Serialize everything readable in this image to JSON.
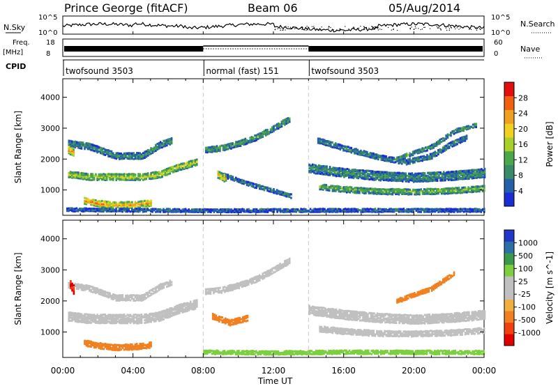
{
  "header": {
    "title": "Prince George (fitACF)",
    "beam": "Beam 06",
    "date": "05/Aug/2014"
  },
  "strips": {
    "nsky_label": "N.Sky",
    "nsky_ticks": [
      "10^5",
      "10^0"
    ],
    "nsearch_label": "N.Search",
    "nsearch_ticks": [
      "10^5",
      "10^0"
    ],
    "freq_label": [
      "Freq.",
      "[MHz]"
    ],
    "freq_ticks": [
      "18",
      "8"
    ],
    "nave_label": "Nave",
    "nave_ticks": [
      "60",
      "0"
    ],
    "cpid_label": "CPID",
    "cpid_segments": [
      {
        "label": "twofsound 3503",
        "start_h": 0,
        "end_h": 8
      },
      {
        "label": "normal (fast) 151",
        "start_h": 8,
        "end_h": 14
      },
      {
        "label": "twofsound 3503",
        "start_h": 14,
        "end_h": 24
      }
    ]
  },
  "colors": {
    "power": [
      "#1a2cd4",
      "#2460a8",
      "#3a8a6a",
      "#4aa84a",
      "#a8d02a",
      "#f0d020",
      "#f0a020",
      "#f06010",
      "#e01010"
    ],
    "velocity": [
      "#2038c8",
      "#2c70a8",
      "#3a9a4a",
      "#7cd040",
      "#c0c0c0",
      "#c0c0c0",
      "#f0b040",
      "#f08020",
      "#f04010",
      "#e00000"
    ]
  },
  "chart_data": [
    {
      "type": "heatmap",
      "name": "power",
      "ylabel": "Slant Range [km]",
      "xlabel": "Time UT",
      "x_ticks": [
        "00:00",
        "04:00",
        "08:00",
        "12:00",
        "16:00",
        "20:00",
        "00:00"
      ],
      "x_range_h": [
        0,
        24
      ],
      "y_ticks": [
        "1000",
        "2000",
        "3000",
        "4000"
      ],
      "ylim": [
        180,
        4600
      ],
      "colorbar_label": "Power [dB]",
      "colorbar_ticks": [
        "4",
        "8",
        "12",
        "16",
        "20",
        "24",
        "28"
      ],
      "colorbar_range": [
        0,
        32
      ],
      "bands": [
        {
          "points": [
            [
              0.3,
              1500
            ],
            [
              1.5,
              1420
            ],
            [
              3,
              1420
            ],
            [
              4.5,
              1420
            ],
            [
              5.5,
              1500
            ],
            [
              6.5,
              1720
            ],
            [
              7.6,
              1900
            ]
          ],
          "width": 220,
          "level": 18
        },
        {
          "points": [
            [
              0.3,
              2500
            ],
            [
              1.5,
              2400
            ],
            [
              3,
              2100
            ],
            [
              4.5,
              2100
            ],
            [
              5.5,
              2450
            ],
            [
              6.2,
              2600
            ]
          ],
          "width": 220,
          "level": 10
        },
        {
          "points": [
            [
              1.2,
              650
            ],
            [
              2,
              560
            ],
            [
              3,
              500
            ],
            [
              4,
              520
            ],
            [
              5,
              580
            ]
          ],
          "width": 220,
          "level": 24
        },
        {
          "points": [
            [
              0.3,
              2300
            ],
            [
              0.6,
              2200
            ]
          ],
          "width": 250,
          "level": 26
        },
        {
          "points": [
            [
              8.1,
              2300
            ],
            [
              9,
              2350
            ],
            [
              10,
              2500
            ],
            [
              11,
              2700
            ],
            [
              12,
              3000
            ],
            [
              12.9,
              3300
            ]
          ],
          "width": 200,
          "level": 11
        },
        {
          "points": [
            [
              9,
              1500
            ],
            [
              10.5,
              1200
            ],
            [
              11.8,
              1000
            ],
            [
              13,
              800
            ]
          ],
          "width": 150,
          "level": 8
        },
        {
          "points": [
            [
              8.8,
              1500
            ],
            [
              9.3,
              1350
            ]
          ],
          "width": 250,
          "level": 22
        },
        {
          "points": [
            [
              14,
              1700
            ],
            [
              16,
              1550
            ],
            [
              18,
              1450
            ],
            [
              20,
              1400
            ],
            [
              22,
              1450
            ],
            [
              24,
              1550
            ]
          ],
          "width": 300,
          "level": 10
        },
        {
          "points": [
            [
              14.6,
              1100
            ],
            [
              16,
              1020
            ],
            [
              18,
              950
            ],
            [
              20,
              940
            ],
            [
              22,
              970
            ],
            [
              24,
              1050
            ]
          ],
          "width": 200,
          "level": 14
        },
        {
          "points": [
            [
              14.5,
              2600
            ],
            [
              16,
              2350
            ],
            [
              18,
              2050
            ],
            [
              19.5,
              1900
            ],
            [
              21,
              2100
            ],
            [
              22,
              2450
            ],
            [
              23,
              2700
            ]
          ],
          "width": 180,
          "level": 9
        },
        {
          "points": [
            [
              19,
              2000
            ],
            [
              21,
              2400
            ],
            [
              22.3,
              2900
            ],
            [
              23.5,
              3100
            ]
          ],
          "width": 150,
          "level": 11
        },
        {
          "points": [
            [
              0.2,
              360
            ],
            [
              8,
              330
            ],
            [
              16,
              340
            ],
            [
              24,
              340
            ]
          ],
          "width": 120,
          "level": 6
        }
      ]
    },
    {
      "type": "heatmap",
      "name": "velocity",
      "ylabel": "Slant Range [km]",
      "xlabel": "Time UT",
      "x_ticks": [
        "00:00",
        "04:00",
        "08:00",
        "12:00",
        "16:00",
        "20:00",
        "00:00"
      ],
      "x_range_h": [
        0,
        24
      ],
      "y_ticks": [
        "1000",
        "2000",
        "3000",
        "4000"
      ],
      "ylim": [
        180,
        4600
      ],
      "colorbar_label": "Velocity [m s^-1]",
      "colorbar_ticks": [
        "1000",
        "500",
        "100",
        "25",
        "-25",
        "-100",
        "-500",
        "-1000"
      ],
      "bands": [
        {
          "points": [
            [
              0.3,
              1500
            ],
            [
              1.5,
              1420
            ],
            [
              3,
              1420
            ],
            [
              4.5,
              1420
            ],
            [
              5.5,
              1500
            ],
            [
              6.5,
              1720
            ],
            [
              7.6,
              1900
            ]
          ],
          "width": 300,
          "level": 0
        },
        {
          "points": [
            [
              0.3,
              2500
            ],
            [
              1.5,
              2400
            ],
            [
              3,
              2100
            ],
            [
              4.5,
              2100
            ],
            [
              5.5,
              2450
            ],
            [
              6.2,
              2600
            ]
          ],
          "width": 200,
          "level": 0
        },
        {
          "points": [
            [
              1.2,
              650
            ],
            [
              2,
              560
            ],
            [
              3,
              500
            ],
            [
              4,
              520
            ],
            [
              5,
              580
            ]
          ],
          "width": 200,
          "level": -200
        },
        {
          "points": [
            [
              0.4,
              2550
            ],
            [
              0.6,
              2350
            ]
          ],
          "width": 300,
          "level": -1000
        },
        {
          "points": [
            [
              8.1,
              2300
            ],
            [
              9,
              2350
            ],
            [
              10,
              2500
            ],
            [
              11,
              2700
            ],
            [
              12,
              3000
            ],
            [
              12.9,
              3300
            ]
          ],
          "width": 200,
          "level": 0
        },
        {
          "points": [
            [
              8.5,
              1500
            ],
            [
              9.5,
              1300
            ],
            [
              10.5,
              1450
            ]
          ],
          "width": 200,
          "level": -300
        },
        {
          "points": [
            [
              14,
              1700
            ],
            [
              16,
              1550
            ],
            [
              18,
              1450
            ],
            [
              20,
              1400
            ],
            [
              22,
              1450
            ],
            [
              24,
              1550
            ]
          ],
          "width": 300,
          "level": 0
        },
        {
          "points": [
            [
              14.6,
              1100
            ],
            [
              16,
              1020
            ],
            [
              18,
              950
            ],
            [
              20,
              940
            ],
            [
              22,
              970
            ],
            [
              24,
              1050
            ]
          ],
          "width": 200,
          "level": 0
        },
        {
          "points": [
            [
              19,
              2000
            ],
            [
              21,
              2400
            ],
            [
              22.3,
              2900
            ]
          ],
          "width": 150,
          "level": -200
        },
        {
          "points": [
            [
              8,
              350
            ],
            [
              12,
              330
            ],
            [
              16,
              350
            ],
            [
              24,
              340
            ]
          ],
          "width": 140,
          "level": 60
        }
      ]
    }
  ]
}
